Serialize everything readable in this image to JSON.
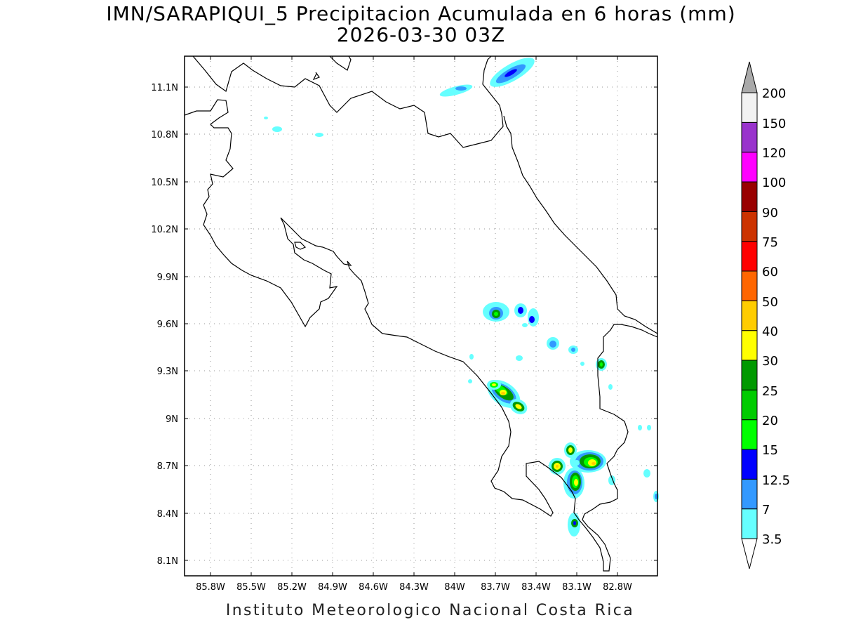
{
  "header": {
    "title": "IMN/SARAPIQUI_5 Precipitacion Acumulada en 6 horas (mm)",
    "subtitle": "2026-03-30 03Z"
  },
  "footer": {
    "credit": "Instituto Meteorologico Nacional Costa Rica"
  },
  "map": {
    "lon_ticks": [
      "85.8W",
      "85.5W",
      "85.2W",
      "84.9W",
      "84.6W",
      "84.3W",
      "84W",
      "83.7W",
      "83.4W",
      "83.1W",
      "82.8W"
    ],
    "lat_ticks": [
      "11.1N",
      "10.8N",
      "10.5N",
      "10.2N",
      "9.9N",
      "9.6N",
      "9.3N",
      "9N",
      "8.7N",
      "8.4N",
      "8.1N"
    ],
    "grid": "dotted"
  },
  "legend": {
    "labels": [
      "3.5",
      "7",
      "12.5",
      "15",
      "20",
      "25",
      "30",
      "40",
      "50",
      "60",
      "75",
      "90",
      "100",
      "120",
      "150",
      "200"
    ],
    "colors": [
      "#66ffff",
      "#3399ff",
      "#0000ff",
      "#00ff00",
      "#00cc00",
      "#009900",
      "#ffff00",
      "#ffcc00",
      "#ff6600",
      "#ff0000",
      "#cc3300",
      "#990000",
      "#ff00ff",
      "#9933cc",
      "#f2f2f2"
    ],
    "over_color": "#aaaaaa",
    "under_color": "#ffffff"
  }
}
